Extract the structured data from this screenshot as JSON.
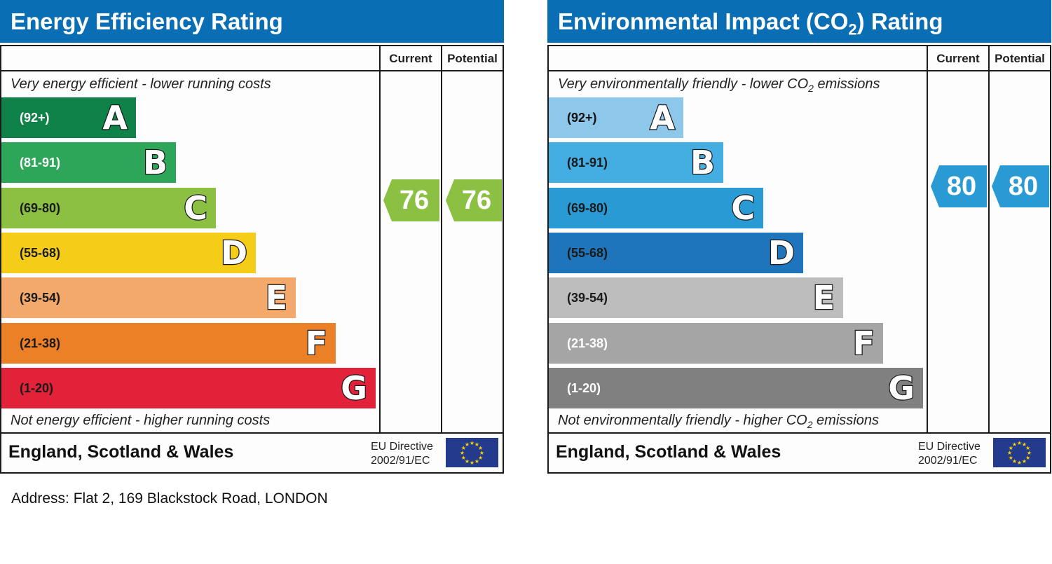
{
  "energy": {
    "title": "Energy Efficiency Rating",
    "col_current": "Current",
    "col_potential": "Potential",
    "top_caption": "Very energy efficient - lower running costs",
    "bottom_caption": "Not energy efficient - higher running costs",
    "region": "England, Scotland & Wales",
    "eu_line1": "EU Directive",
    "eu_line2": "2002/91/EC",
    "current_value": "76",
    "potential_value": "76",
    "arrow_color": "#8cc043",
    "bands": [
      {
        "range": "(92+)",
        "letter": "A",
        "color": "#0f8249",
        "text_color": "#ffffff"
      },
      {
        "range": "(81-91)",
        "letter": "B",
        "color": "#2ea65a",
        "text_color": "#ffffff"
      },
      {
        "range": "(69-80)",
        "letter": "C",
        "color": "#8cc043",
        "text_color": "#1a1a1a"
      },
      {
        "range": "(55-68)",
        "letter": "D",
        "color": "#f5cd19",
        "text_color": "#1a1a1a"
      },
      {
        "range": "(39-54)",
        "letter": "E",
        "color": "#f3a96b",
        "text_color": "#1a1a1a"
      },
      {
        "range": "(21-38)",
        "letter": "F",
        "color": "#ec8027",
        "text_color": "#1a1a1a"
      },
      {
        "range": "(1-20)",
        "letter": "G",
        "color": "#e12239",
        "text_color": "#1a1a1a"
      }
    ]
  },
  "environment": {
    "title_prefix": "Environmental Impact (CO",
    "title_sub": "2",
    "title_suffix": ") Rating",
    "col_current": "Current",
    "col_potential": "Potential",
    "top_caption_prefix": "Very environmentally friendly - lower CO",
    "top_caption_sub": "2",
    "top_caption_suffix": " emissions",
    "bottom_caption_prefix": "Not environmentally friendly - higher CO",
    "bottom_caption_sub": "2",
    "bottom_caption_suffix": " emissions",
    "region": "England, Scotland & Wales",
    "eu_line1": "EU Directive",
    "eu_line2": "2002/91/EC",
    "current_value": "80",
    "potential_value": "80",
    "arrow_color": "#2a9ad5",
    "bands": [
      {
        "range": "(92+)",
        "letter": "A",
        "color": "#8dc7ea",
        "text_color": "#111111"
      },
      {
        "range": "(81-91)",
        "letter": "B",
        "color": "#44aee3",
        "text_color": "#1a1a1a"
      },
      {
        "range": "(69-80)",
        "letter": "C",
        "color": "#2a9ad5",
        "text_color": "#1a1a1a"
      },
      {
        "range": "(55-68)",
        "letter": "D",
        "color": "#1f75bb",
        "text_color": "#1a1a1a"
      },
      {
        "range": "(39-54)",
        "letter": "E",
        "color": "#bdbdbd",
        "text_color": "#1a1a1a"
      },
      {
        "range": "(21-38)",
        "letter": "F",
        "color": "#a5a5a5",
        "text_color": "#ffffff"
      },
      {
        "range": "(1-20)",
        "letter": "G",
        "color": "#808080",
        "text_color": "#ffffff"
      }
    ]
  },
  "chart_data": [
    {
      "type": "bar",
      "title": "Energy Efficiency Rating",
      "categories": [
        "(92+) A",
        "(81-91) B",
        "(69-80) C",
        "(55-68) D",
        "(39-54) E",
        "(21-38) F",
        "(1-20) G"
      ],
      "current": 76,
      "potential": 76
    },
    {
      "type": "bar",
      "title": "Environmental Impact (CO2) Rating",
      "categories": [
        "(92+) A",
        "(81-91) B",
        "(69-80) C",
        "(55-68) D",
        "(39-54) E",
        "(21-38) F",
        "(1-20) G"
      ],
      "current": 80,
      "potential": 80
    }
  ],
  "address": "Address: Flat 2, 169 Blackstock Road, LONDON"
}
